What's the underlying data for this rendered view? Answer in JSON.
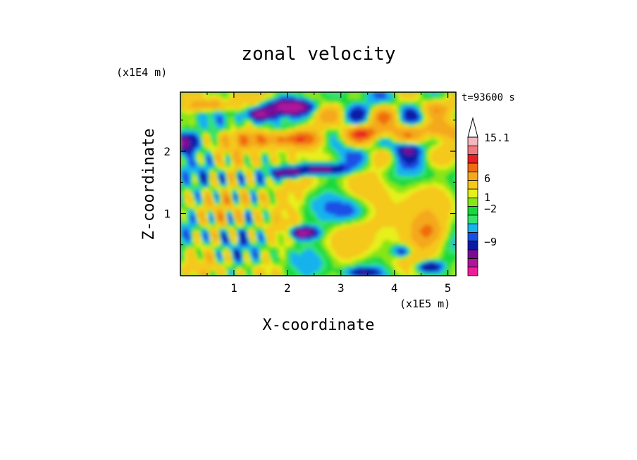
{
  "chart_data": {
    "type": "heatmap",
    "title": "zonal velocity",
    "xlabel": "X-coordinate",
    "ylabel": "Z-coordinate",
    "x_unit": "(x1E5 m)",
    "y_unit": "(x1E4 m)",
    "time_label": "t=93600 s",
    "xlim": [
      0,
      5.15
    ],
    "ylim": [
      0,
      2.95
    ],
    "x_ticks": [
      "1",
      "2",
      "3",
      "4",
      "5"
    ],
    "y_ticks": [
      "1",
      "2"
    ],
    "colorbar": {
      "labels": [
        "15.1",
        "6",
        "1",
        "−2",
        "−9"
      ],
      "levels": [
        {
          "value": -12,
          "color": "#ee1e9b"
        },
        {
          "value": -9,
          "color": "#b01499"
        },
        {
          "value": -6,
          "color": "#7a0a96"
        },
        {
          "value": -4,
          "color": "#0a1aa5"
        },
        {
          "value": -2,
          "color": "#1a4fe6"
        },
        {
          "value": -1,
          "color": "#19b2ee"
        },
        {
          "value": 0,
          "color": "#34e26e"
        },
        {
          "value": 0.5,
          "color": "#16d93a"
        },
        {
          "value": 1,
          "color": "#88e617"
        },
        {
          "value": 1.5,
          "color": "#e6f01a"
        },
        {
          "value": 2,
          "color": "#f5c81a"
        },
        {
          "value": 4,
          "color": "#f4a81a"
        },
        {
          "value": 6,
          "color": "#f06c10"
        },
        {
          "value": 8,
          "color": "#e82020"
        },
        {
          "value": 11,
          "color": "#f07a80"
        },
        {
          "value": 15.1,
          "color": "#f5b6c0"
        }
      ]
    },
    "features": [
      {
        "kind": "positive band",
        "x": [
          0.6,
          3.2
        ],
        "z": 2.2,
        "value": 6
      },
      {
        "kind": "negative band",
        "x": [
          1.3,
          2.9
        ],
        "z": 2.75,
        "value": -6
      },
      {
        "kind": "negative band",
        "x": [
          2.0,
          3.2
        ],
        "z": 1.75,
        "value": -5
      },
      {
        "kind": "negative patch",
        "x": 0.05,
        "z": 2.15,
        "value": -7
      },
      {
        "kind": "negative patch",
        "x": 2.25,
        "z": 0.7,
        "value": -5
      },
      {
        "kind": "positive patch",
        "x": 4.6,
        "z": 0.7,
        "value": 6
      },
      {
        "kind": "negative patch",
        "x": 4.7,
        "z": 0.15,
        "value": -5
      }
    ]
  }
}
